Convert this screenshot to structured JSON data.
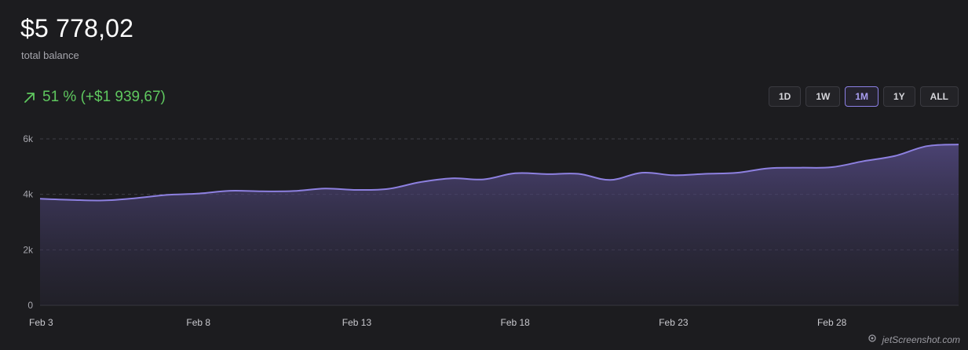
{
  "balance": {
    "amount": "$5 778,02",
    "caption": "total balance"
  },
  "change": {
    "text": "51 % (+$1 939,67)",
    "color": "#5fc85f",
    "icon": "arrow-up-right-icon"
  },
  "ranges": [
    {
      "label": "1D",
      "active": false
    },
    {
      "label": "1W",
      "active": false
    },
    {
      "label": "1M",
      "active": true
    },
    {
      "label": "1Y",
      "active": false
    },
    {
      "label": "ALL",
      "active": false
    }
  ],
  "chart_data": {
    "type": "area",
    "ylim": [
      0,
      6000
    ],
    "yticks": [
      0,
      2000,
      4000,
      6000
    ],
    "ytick_labels": [
      "0",
      "2k",
      "4k",
      "6k"
    ],
    "xticks": [
      0,
      5,
      10,
      15,
      20,
      25
    ],
    "xtick_labels": [
      "Feb 3",
      "Feb 8",
      "Feb 13",
      "Feb 18",
      "Feb 23",
      "Feb 28"
    ],
    "xlim": [
      0,
      29
    ],
    "grid": true,
    "series": [
      {
        "color": "#8d80e0",
        "x": [
          0,
          1,
          2,
          3,
          4,
          5,
          6,
          7,
          8,
          9,
          10,
          11,
          12,
          13,
          14,
          15,
          16,
          17,
          18,
          19,
          20,
          21,
          22,
          23,
          24,
          25,
          26,
          27,
          28,
          29
        ],
        "y": [
          3840,
          3800,
          3780,
          3860,
          3980,
          4030,
          4130,
          4110,
          4120,
          4210,
          4160,
          4200,
          4440,
          4580,
          4540,
          4760,
          4730,
          4740,
          4520,
          4780,
          4690,
          4740,
          4780,
          4940,
          4960,
          4980,
          5200,
          5390,
          5740,
          5800
        ]
      }
    ]
  },
  "watermark": "jetScreenshot.com"
}
